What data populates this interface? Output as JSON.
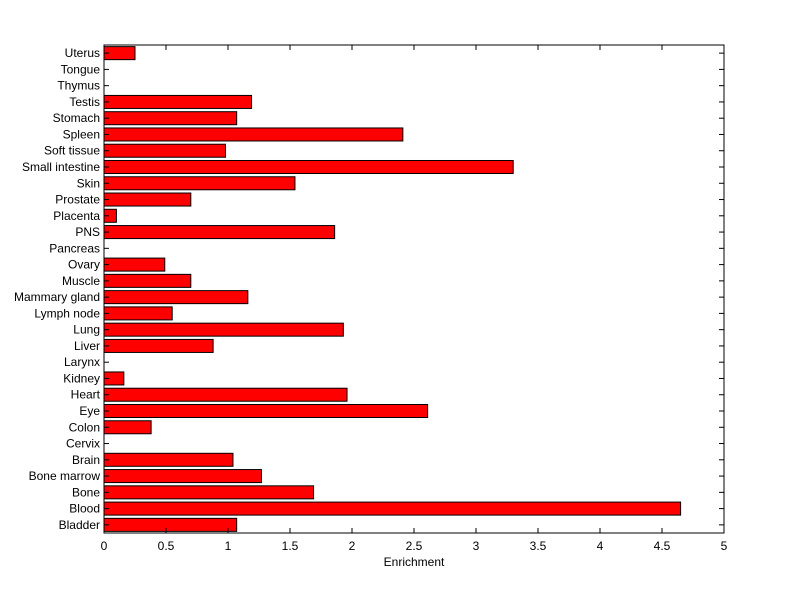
{
  "chart_data": {
    "type": "bar",
    "orientation": "horizontal",
    "xlabel": "Enrichment",
    "ylabel": "",
    "title": "",
    "xlim": [
      0,
      5
    ],
    "xticks": [
      "0",
      "0.5",
      "1",
      "1.5",
      "2",
      "2.5",
      "3",
      "3.5",
      "4",
      "4.5",
      "5"
    ],
    "grid": false,
    "bar_color": "#ff0000",
    "categories": [
      "Bladder",
      "Blood",
      "Bone",
      "Bone marrow",
      "Brain",
      "Cervix",
      "Colon",
      "Eye",
      "Heart",
      "Kidney",
      "Larynx",
      "Liver",
      "Lung",
      "Lymph node",
      "Mammary gland",
      "Muscle",
      "Ovary",
      "Pancreas",
      "PNS",
      "Placenta",
      "Prostate",
      "Skin",
      "Small intestine",
      "Soft tissue",
      "Spleen",
      "Stomach",
      "Testis",
      "Thymus",
      "Tongue",
      "Uterus"
    ],
    "values": [
      1.07,
      4.65,
      1.69,
      1.27,
      1.04,
      0,
      0.38,
      2.61,
      1.96,
      0.16,
      0,
      0.88,
      1.93,
      0.55,
      1.16,
      0.7,
      0.49,
      0,
      1.86,
      0.1,
      0.7,
      1.54,
      3.3,
      0.98,
      2.41,
      1.07,
      1.19,
      0,
      0,
      0.25
    ]
  }
}
